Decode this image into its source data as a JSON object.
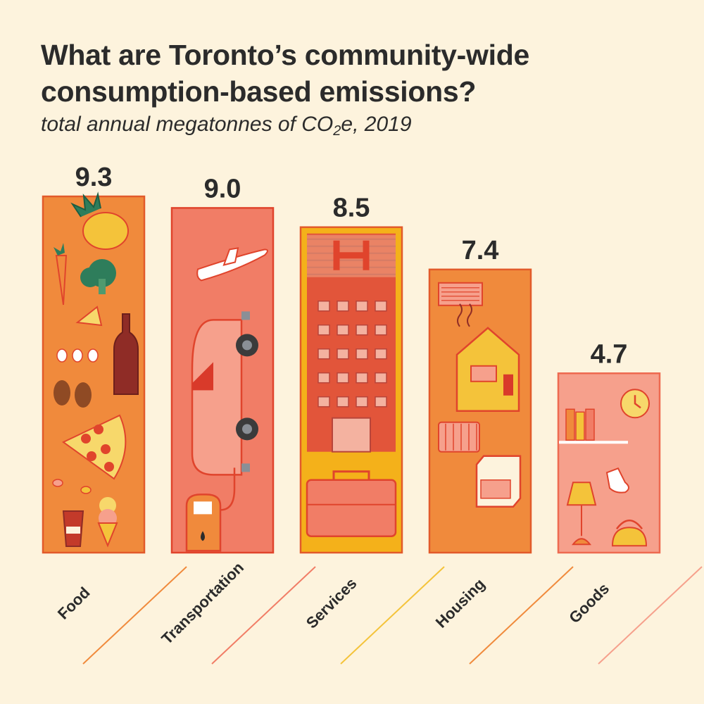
{
  "title": "What are Toronto’s community-wide consumption-based emissions?",
  "subtitle": {
    "pre": "total annual megatonnes of CO",
    "sub": "2",
    "post": "e, 2019"
  },
  "chart_data": {
    "type": "bar",
    "title": "What are Toronto’s community-wide consumption-based emissions?",
    "subtitle": "total annual megatonnes of CO2e, 2019",
    "categories": [
      "Food",
      "Transportation",
      "Services",
      "Housing",
      "Goods"
    ],
    "values": [
      9.3,
      9.0,
      8.5,
      7.4,
      4.7
    ],
    "value_labels": [
      "9.3",
      "9.0",
      "8.5",
      "7.4",
      "4.7"
    ],
    "colors": [
      "#f08a3c",
      "#f17d66",
      "#f4b11a",
      "#f08a3c",
      "#f6a08c"
    ],
    "borders": [
      "#e25a2a",
      "#e0442c",
      "#e25a2a",
      "#e25a2a",
      "#ee6a50"
    ],
    "line_colors": [
      "#f08a3c",
      "#f17d66",
      "#f4c33a",
      "#f08a3c",
      "#f6a08c"
    ],
    "icons": [
      [
        "pineapple-icon",
        "carrot-icon",
        "broccoli-icon",
        "cheese-icon",
        "wine-bottle-icon",
        "eggs-icon",
        "chicken-leg-icon",
        "pizza-icon",
        "candy-icon",
        "coffee-cup-icon",
        "ice-cream-icon"
      ],
      [
        "airplane-icon",
        "car-icon",
        "fuel-pump-icon"
      ],
      [
        "office-building-icon",
        "briefcase-icon"
      ],
      [
        "air-conditioner-icon",
        "house-icon",
        "radiator-icon",
        "stove-icon"
      ],
      [
        "books-icon",
        "clock-icon",
        "socks-icon",
        "lamp-icon",
        "kettle-icon"
      ]
    ],
    "ylim": [
      0,
      9.3
    ],
    "grid": false,
    "legend": "none"
  }
}
